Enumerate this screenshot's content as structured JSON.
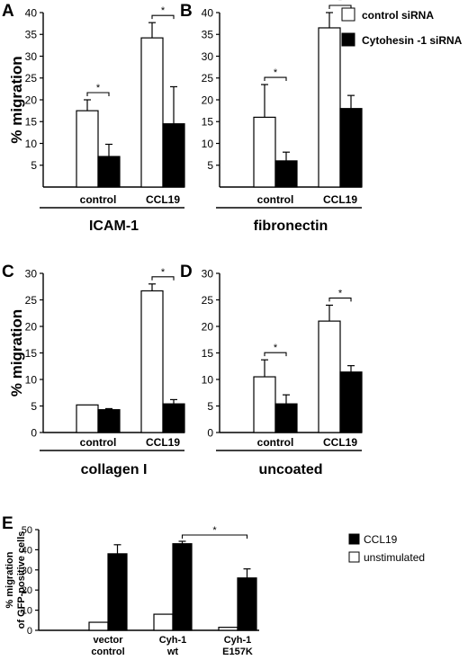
{
  "colors": {
    "control_siRNA": "#ffffff",
    "cytohesin_siRNA": "#000000",
    "axis": "#000000"
  },
  "legend_top": {
    "items": [
      "control  siRNA",
      "Cytohesin -1 siRNA"
    ],
    "placement": "top-right"
  },
  "legend_bottom": {
    "items": [
      "CCL19",
      "unstimulated"
    ],
    "placement": "right"
  },
  "chart_data": [
    {
      "panel": "A",
      "type": "bar",
      "ylabel": "% migration",
      "group_label": "ICAM-1",
      "categories": [
        "control",
        "CCL19"
      ],
      "ylim": [
        0,
        40
      ],
      "yticks": [
        5,
        10,
        15,
        20,
        25,
        30,
        35,
        40
      ],
      "series": [
        {
          "name": "control  siRNA",
          "values": [
            17.5,
            34.2
          ],
          "errors": [
            2.5,
            3.5
          ]
        },
        {
          "name": "Cytohesin -1 siRNA",
          "values": [
            7,
            14.5
          ],
          "errors": [
            2.8,
            8.5
          ]
        }
      ],
      "significance": [
        "*",
        "*"
      ]
    },
    {
      "panel": "B",
      "type": "bar",
      "ylabel": "",
      "group_label": "fibronectin",
      "categories": [
        "control",
        "CCL19"
      ],
      "ylim": [
        0,
        40
      ],
      "yticks": [
        5,
        10,
        15,
        20,
        25,
        30,
        35,
        40
      ],
      "series": [
        {
          "name": "control  siRNA",
          "values": [
            16,
            36.5
          ],
          "errors": [
            7.5,
            3.5
          ]
        },
        {
          "name": "Cytohesin -1 siRNA",
          "values": [
            6,
            18
          ],
          "errors": [
            2,
            3
          ]
        }
      ],
      "significance": [
        "*",
        "*"
      ]
    },
    {
      "panel": "C",
      "type": "bar",
      "ylabel": "% migration",
      "group_label": "collagen I",
      "categories": [
        "control",
        "CCL19"
      ],
      "ylim": [
        0,
        30
      ],
      "yticks": [
        0,
        5,
        10,
        15,
        20,
        25,
        30
      ],
      "series": [
        {
          "name": "control  siRNA",
          "values": [
            5.2,
            26.7
          ],
          "errors": [
            0,
            1.3
          ]
        },
        {
          "name": "Cytohesin -1 siRNA",
          "values": [
            4.3,
            5.4
          ],
          "errors": [
            0.2,
            0.8
          ]
        }
      ],
      "significance": [
        "",
        "*"
      ]
    },
    {
      "panel": "D",
      "type": "bar",
      "ylabel": "",
      "group_label": "uncoated",
      "categories": [
        "control",
        "CCL19"
      ],
      "ylim": [
        0,
        30
      ],
      "yticks": [
        0,
        5,
        10,
        15,
        20,
        25,
        30
      ],
      "series": [
        {
          "name": "control  siRNA",
          "values": [
            10.5,
            21
          ],
          "errors": [
            3.2,
            3
          ]
        },
        {
          "name": "Cytohesin -1 siRNA",
          "values": [
            5.4,
            11.4
          ],
          "errors": [
            1.7,
            1.2
          ]
        }
      ],
      "significance": [
        "*",
        "*"
      ]
    },
    {
      "panel": "E",
      "type": "bar",
      "ylabel_lines": [
        "% migration",
        "of GFP-positive cells"
      ],
      "categories": [
        [
          "vector",
          "control"
        ],
        [
          "Cyh-1",
          "wt"
        ],
        [
          "Cyh-1",
          "E157K"
        ]
      ],
      "ylim": [
        0,
        50
      ],
      "yticks": [
        0,
        10,
        20,
        30,
        40,
        50
      ],
      "series": [
        {
          "name": "unstimulated",
          "values": [
            4,
            8,
            1.5
          ],
          "errors": [
            0,
            0,
            0
          ]
        },
        {
          "name": "CCL19",
          "values": [
            38,
            43,
            26
          ],
          "errors": [
            4.5,
            1.2,
            4.5
          ]
        }
      ],
      "significance_label": "*"
    }
  ]
}
